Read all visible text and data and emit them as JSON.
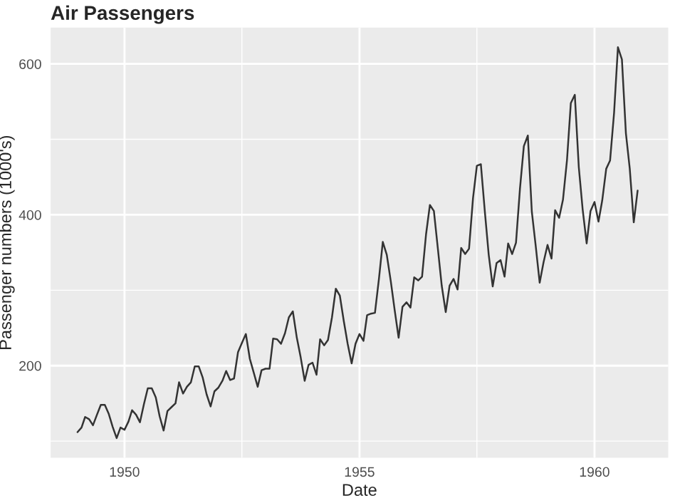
{
  "chart_data": {
    "type": "line",
    "title": "Air Passengers",
    "xlabel": "Date",
    "ylabel": "Passenger numbers (1000's)",
    "x": [
      "1949-01",
      "1949-02",
      "1949-03",
      "1949-04",
      "1949-05",
      "1949-06",
      "1949-07",
      "1949-08",
      "1949-09",
      "1949-10",
      "1949-11",
      "1949-12",
      "1950-01",
      "1950-02",
      "1950-03",
      "1950-04",
      "1950-05",
      "1950-06",
      "1950-07",
      "1950-08",
      "1950-09",
      "1950-10",
      "1950-11",
      "1950-12",
      "1951-01",
      "1951-02",
      "1951-03",
      "1951-04",
      "1951-05",
      "1951-06",
      "1951-07",
      "1951-08",
      "1951-09",
      "1951-10",
      "1951-11",
      "1951-12",
      "1952-01",
      "1952-02",
      "1952-03",
      "1952-04",
      "1952-05",
      "1952-06",
      "1952-07",
      "1952-08",
      "1952-09",
      "1952-10",
      "1952-11",
      "1952-12",
      "1953-01",
      "1953-02",
      "1953-03",
      "1953-04",
      "1953-05",
      "1953-06",
      "1953-07",
      "1953-08",
      "1953-09",
      "1953-10",
      "1953-11",
      "1953-12",
      "1954-01",
      "1954-02",
      "1954-03",
      "1954-04",
      "1954-05",
      "1954-06",
      "1954-07",
      "1954-08",
      "1954-09",
      "1954-10",
      "1954-11",
      "1954-12",
      "1955-01",
      "1955-02",
      "1955-03",
      "1955-04",
      "1955-05",
      "1955-06",
      "1955-07",
      "1955-08",
      "1955-09",
      "1955-10",
      "1955-11",
      "1955-12",
      "1956-01",
      "1956-02",
      "1956-03",
      "1956-04",
      "1956-05",
      "1956-06",
      "1956-07",
      "1956-08",
      "1956-09",
      "1956-10",
      "1956-11",
      "1956-12",
      "1957-01",
      "1957-02",
      "1957-03",
      "1957-04",
      "1957-05",
      "1957-06",
      "1957-07",
      "1957-08",
      "1957-09",
      "1957-10",
      "1957-11",
      "1957-12",
      "1958-01",
      "1958-02",
      "1958-03",
      "1958-04",
      "1958-05",
      "1958-06",
      "1958-07",
      "1958-08",
      "1958-09",
      "1958-10",
      "1958-11",
      "1958-12",
      "1959-01",
      "1959-02",
      "1959-03",
      "1959-04",
      "1959-05",
      "1959-06",
      "1959-07",
      "1959-08",
      "1959-09",
      "1959-10",
      "1959-11",
      "1959-12",
      "1960-01",
      "1960-02",
      "1960-03",
      "1960-04",
      "1960-05",
      "1960-06",
      "1960-07",
      "1960-08",
      "1960-09",
      "1960-10",
      "1960-11",
      "1960-12"
    ],
    "series": [
      {
        "color": "#333333",
        "values": [
          112,
          118,
          132,
          129,
          121,
          135,
          148,
          148,
          136,
          119,
          104,
          118,
          115,
          126,
          141,
          135,
          125,
          149,
          170,
          170,
          158,
          133,
          114,
          140,
          145,
          150,
          178,
          163,
          172,
          178,
          199,
          199,
          184,
          162,
          146,
          166,
          171,
          180,
          193,
          181,
          183,
          218,
          230,
          242,
          209,
          191,
          172,
          194,
          196,
          196,
          236,
          235,
          229,
          243,
          264,
          272,
          237,
          211,
          180,
          201,
          204,
          188,
          235,
          227,
          234,
          264,
          302,
          293,
          259,
          229,
          203,
          229,
          242,
          233,
          267,
          269,
          270,
          315,
          364,
          347,
          312,
          274,
          237,
          278,
          284,
          277,
          317,
          313,
          318,
          374,
          413,
          405,
          355,
          306,
          271,
          306,
          315,
          301,
          356,
          348,
          355,
          422,
          465,
          467,
          404,
          347,
          305,
          336,
          340,
          318,
          362,
          348,
          363,
          435,
          491,
          505,
          404,
          359,
          310,
          337,
          360,
          342,
          406,
          396,
          420,
          472,
          548,
          559,
          463,
          407,
          362,
          405,
          417,
          391,
          419,
          461,
          472,
          535,
          622,
          606,
          508,
          461,
          390,
          432
        ]
      }
    ],
    "xlim": [
      "1948-06-06",
      "1961-07-27"
    ],
    "xticks": [
      {
        "value": "1950",
        "label": "1950"
      },
      {
        "value": "1952-07",
        "label": null
      },
      {
        "value": "1955",
        "label": "1955"
      },
      {
        "value": "1957-07",
        "label": null
      },
      {
        "value": "1960",
        "label": "1960"
      }
    ],
    "ylim": [
      78,
      648
    ],
    "yticks": [
      {
        "value": 100,
        "label": null
      },
      200,
      {
        "value": 300,
        "label": null
      },
      400,
      {
        "value": 500,
        "label": null
      },
      600
    ],
    "grid": true,
    "legend": false,
    "line_style": "solid",
    "marker": "none"
  }
}
